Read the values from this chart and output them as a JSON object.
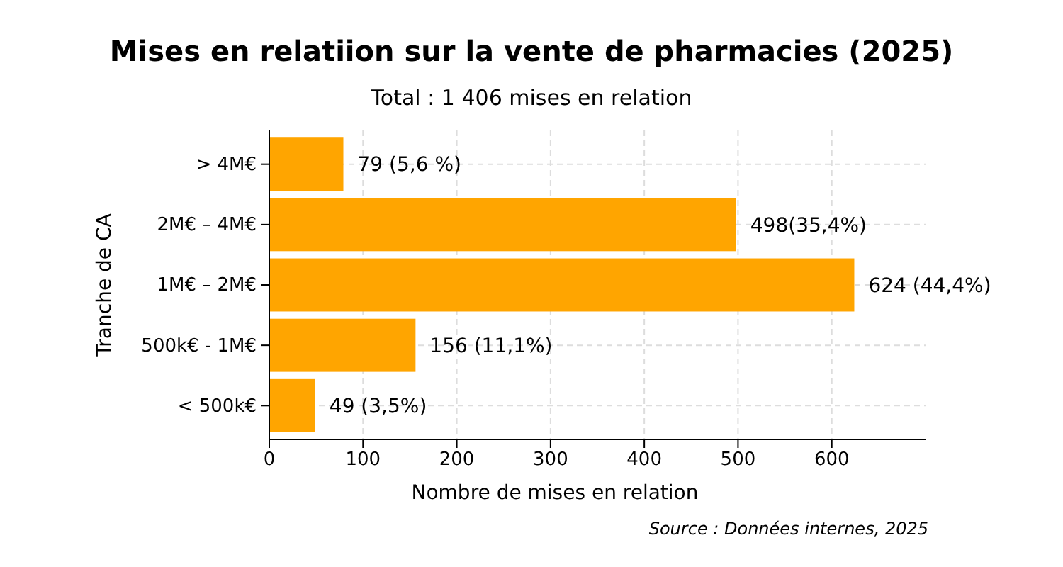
{
  "chart_data": {
    "type": "bar",
    "orientation": "horizontal",
    "title": "Mises en relatiion sur la vente de pharmacies (2025)",
    "subtitle": "Total : 1 406 mises en relation",
    "xlabel": "Nombre de mises en relation",
    "ylabel": "Tranche de CA",
    "categories": [
      "> 4M€",
      "2M€ – 4M€",
      "1M€ – 2M€",
      "500k€ - 1M€",
      "< 500k€"
    ],
    "values": [
      79,
      498,
      624,
      156,
      49
    ],
    "value_labels": [
      "79 (5,6 %)",
      "498(35,4%)",
      "624 (44,4%)",
      "156 (11,1%)",
      "49 (3,5%)"
    ],
    "color": "#ffa500",
    "xlim": [
      0,
      700
    ],
    "xticks": [
      0,
      100,
      200,
      300,
      400,
      500,
      600
    ],
    "grid": true,
    "annotations": [
      "Source : Données internes, 2025"
    ]
  }
}
